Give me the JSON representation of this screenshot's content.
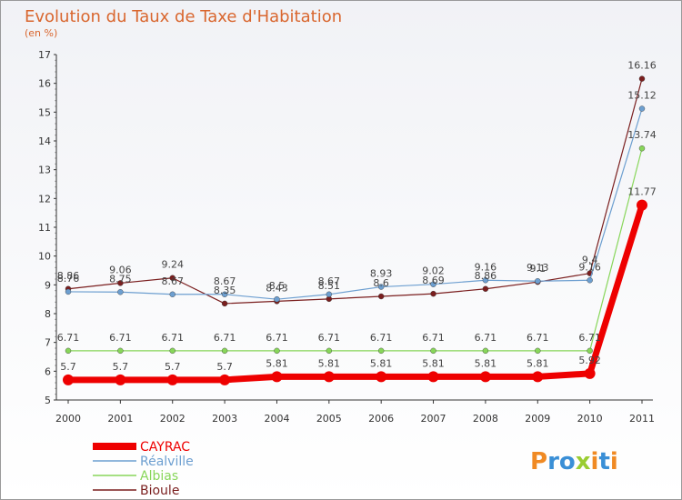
{
  "chart_data": {
    "type": "line",
    "title": "Evolution du Taux de Taxe d'Habitation",
    "ylabel": "(en %)",
    "xlabel": "",
    "ylim": [
      5,
      17
    ],
    "grid": false,
    "legend_position": "bottom-left",
    "x": [
      "2000",
      "2001",
      "2002",
      "2003",
      "2004",
      "2005",
      "2006",
      "2007",
      "2008",
      "2009",
      "2010",
      "2011"
    ],
    "y_ticks": [
      "5",
      "6",
      "7",
      "8",
      "9",
      "10",
      "11",
      "12",
      "13",
      "14",
      "15",
      "16",
      "17"
    ],
    "series": [
      {
        "name": "Bioule",
        "color": "#7a1e1e",
        "width": 1.2,
        "values": [
          8.86,
          9.06,
          9.24,
          8.35,
          8.43,
          8.51,
          8.6,
          8.69,
          8.86,
          9.1,
          9.4,
          16.16
        ],
        "labels": [
          "8.86",
          "9.06",
          "9.24",
          "8.35",
          "8.43",
          "8.51",
          "8.6",
          "8.69",
          "8.86",
          "9.1",
          "9.4",
          "16.16"
        ]
      },
      {
        "name": "Albias",
        "color": "#88d65a",
        "width": 1.2,
        "values": [
          6.71,
          6.71,
          6.71,
          6.71,
          6.71,
          6.71,
          6.71,
          6.71,
          6.71,
          6.71,
          6.71,
          13.74
        ],
        "labels": [
          "6.71",
          "6.71",
          "6.71",
          "6.71",
          "6.71",
          "6.71",
          "6.71",
          "6.71",
          "6.71",
          "6.71",
          "6.71",
          "13.74"
        ]
      },
      {
        "name": "Réalville",
        "color": "#6d9fd0",
        "width": 1.2,
        "values": [
          8.76,
          8.75,
          8.67,
          8.67,
          8.5,
          8.67,
          8.93,
          9.02,
          9.16,
          9.13,
          9.16,
          15.12
        ],
        "labels": [
          "8.76",
          "8.75",
          "8.67",
          "8.67",
          "8.5",
          "8.67",
          "8.93",
          "9.02",
          "9.16",
          "9.13",
          "9.16",
          "15.12"
        ]
      },
      {
        "name": "CAYRAC",
        "color": "#ee0000",
        "width": 7,
        "values": [
          5.7,
          5.7,
          5.7,
          5.7,
          5.81,
          5.81,
          5.81,
          5.81,
          5.81,
          5.81,
          5.92,
          11.77
        ],
        "labels": [
          "5.7",
          "5.7",
          "5.7",
          "5.7",
          "5.81",
          "5.81",
          "5.81",
          "5.81",
          "5.81",
          "5.81",
          "5.92",
          "11.77"
        ]
      }
    ]
  },
  "legend": [
    "CAYRAC",
    "Réalville",
    "Albias",
    "Bioule"
  ],
  "logo": {
    "text": "Proxiti"
  }
}
